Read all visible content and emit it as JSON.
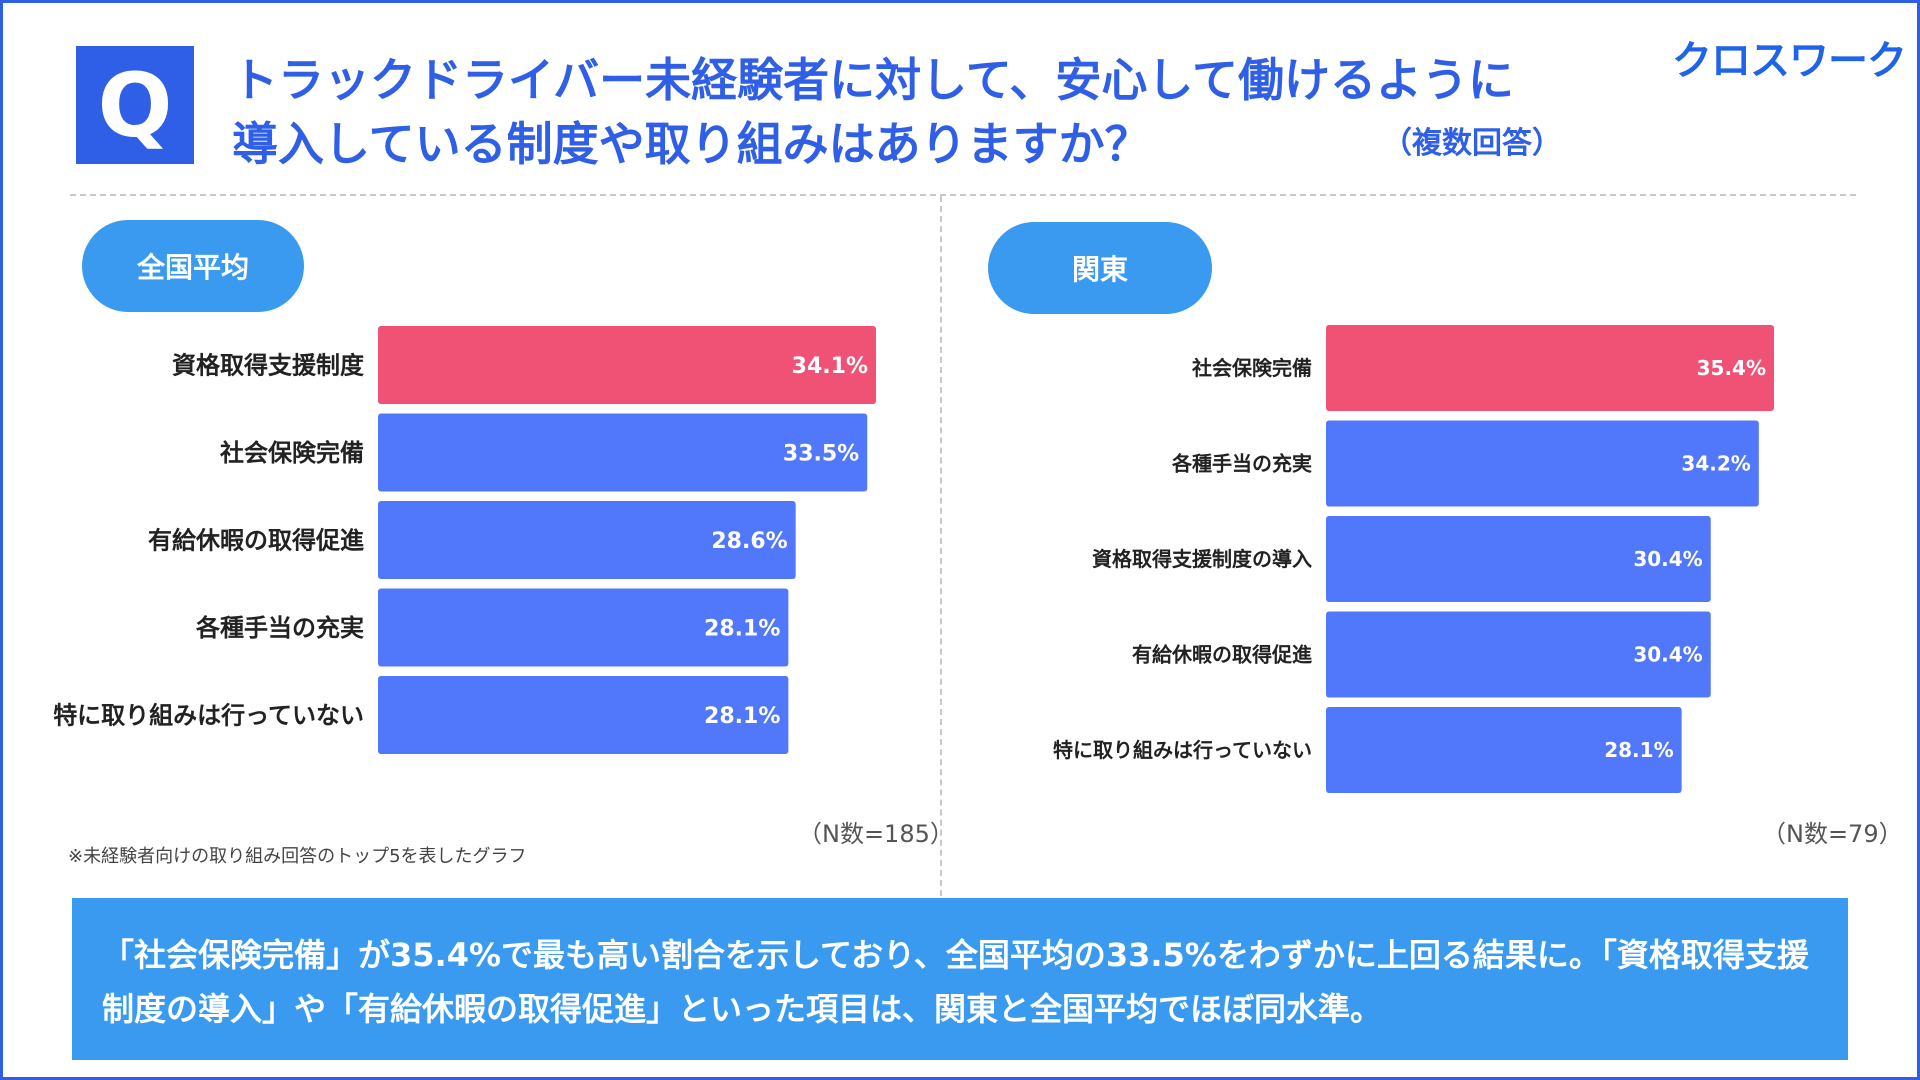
{
  "header": {
    "q_label": "Q",
    "title_line1": "トラックドライバー未経験者に対して、安心して働けるように",
    "title_line2": "導入している制度や取り組みはありますか？",
    "multi_answer_note": "（複数回答）",
    "logo": "クロスワーク"
  },
  "colors": {
    "accent": "#2f5fe6",
    "pill": "#3a9af0",
    "bar_top": "#ef5275",
    "bar": "#5177fb"
  },
  "chart_data": [
    {
      "type": "bar",
      "orientation": "horizontal",
      "title": "全国平均",
      "categories": [
        "資格取得支援制度",
        "社会保険完備",
        "有給休暇の取得促進",
        "各種手当の充実",
        "特に取り組みは行っていない"
      ],
      "values": [
        34.1,
        33.5,
        28.6,
        28.1,
        28.1
      ],
      "labels": [
        "34.1%",
        "33.5%",
        "28.6%",
        "28.1%",
        "28.1%"
      ],
      "unit": "%",
      "n_note": "（N数=185）"
    },
    {
      "type": "bar",
      "orientation": "horizontal",
      "title": "関東",
      "categories": [
        "社会保険完備",
        "各種手当の充実",
        "資格取得支援制度の導入",
        "有給休暇の取得促進",
        "特に取り組みは行っていない"
      ],
      "values": [
        35.4,
        34.2,
        30.4,
        30.4,
        28.1
      ],
      "labels": [
        "35.4%",
        "34.2%",
        "30.4%",
        "30.4%",
        "28.1%"
      ],
      "unit": "%",
      "n_note": "（N数=79）"
    }
  ],
  "footnote": "※未経験者向けの取り組み回答のトップ5を表したグラフ",
  "summary": "「社会保険完備」が35.4%で最も高い割合を示しており、全国平均の33.5%をわずかに上回る結果に。「資格取得支援制度の導入」や「有給休暇の取得促進」といった項目は、関東と全国平均でほぼ同水準。"
}
